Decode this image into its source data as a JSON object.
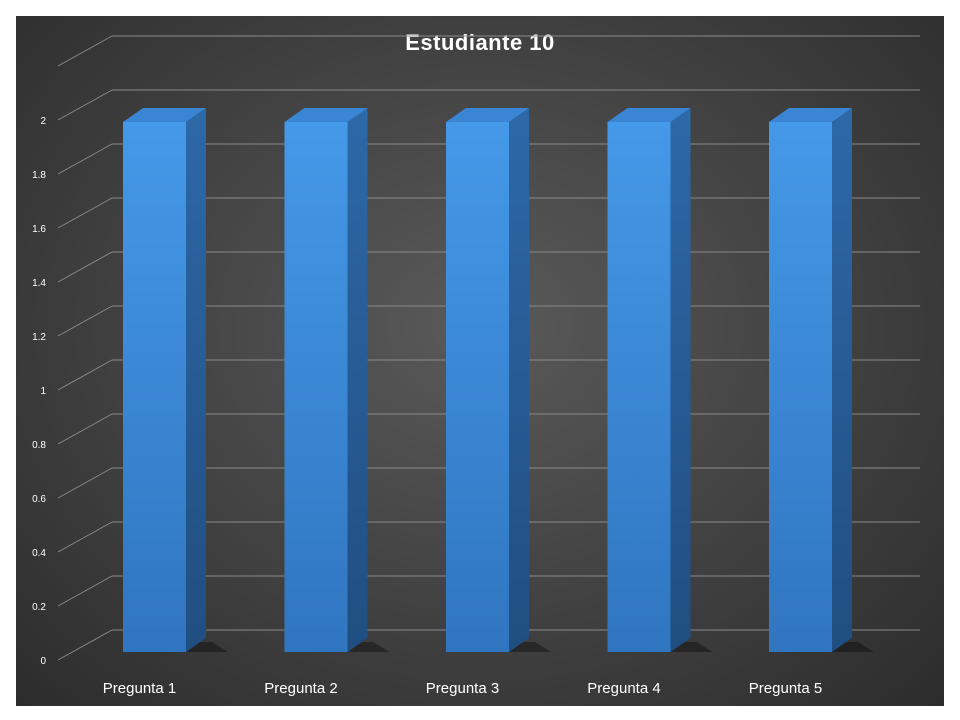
{
  "chart_data": {
    "type": "bar",
    "title": "Estudiante  10",
    "categories": [
      "Pregunta 1",
      "Pregunta 2",
      "Pregunta 3",
      "Pregunta 4",
      "Pregunta 5"
    ],
    "values": [
      2,
      2,
      2,
      2,
      2
    ],
    "ylim": [
      0,
      2.2
    ],
    "yticks": [
      "0",
      "0.2",
      "0.4",
      "0.6",
      "0.8",
      "1",
      "1.2",
      "1.4",
      "1.6",
      "1.8",
      "2"
    ],
    "grid": true,
    "legend": "none",
    "style": "3d-column"
  },
  "colors": {
    "bar_front": "#3a8fe0",
    "bar_top": "#3b86d4",
    "bar_side": "#2a5f9b",
    "gridline": "#8a8a8a",
    "background": "#474747"
  }
}
